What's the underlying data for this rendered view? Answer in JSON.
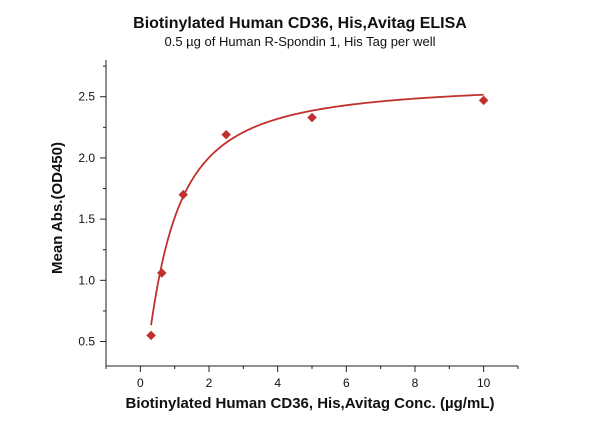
{
  "chart_data": {
    "type": "scatter",
    "title": "Biotinylated Human CD36, His,Avitag ELISA",
    "subtitle": "0.5 µg of Human R-Spondin 1, His Tag per well",
    "xlabel": "Biotinylated Human CD36, His,Avitag Conc. (µg/mL)",
    "ylabel": "Mean Abs.(OD450)",
    "xlim": [
      -1,
      11
    ],
    "ylim": [
      0.3,
      2.8
    ],
    "x_ticks": [
      0,
      2,
      4,
      6,
      8,
      10
    ],
    "y_ticks": [
      0.5,
      1.0,
      1.5,
      2.0,
      2.5
    ],
    "x_tick_labels": [
      "0",
      "2",
      "4",
      "6",
      "8",
      "10"
    ],
    "y_tick_labels": [
      "0.5",
      "1.0",
      "1.5",
      "2.0",
      "2.5"
    ],
    "grid": false,
    "legend": "none",
    "series": [
      {
        "x": [
          0.3125,
          0.625,
          1.25,
          2.5,
          5,
          10
        ],
        "y": [
          0.55,
          1.06,
          1.7,
          2.19,
          2.33,
          2.47
        ],
        "marker": "diamond",
        "color": "#c0312d",
        "fit_curve": true
      }
    ]
  }
}
